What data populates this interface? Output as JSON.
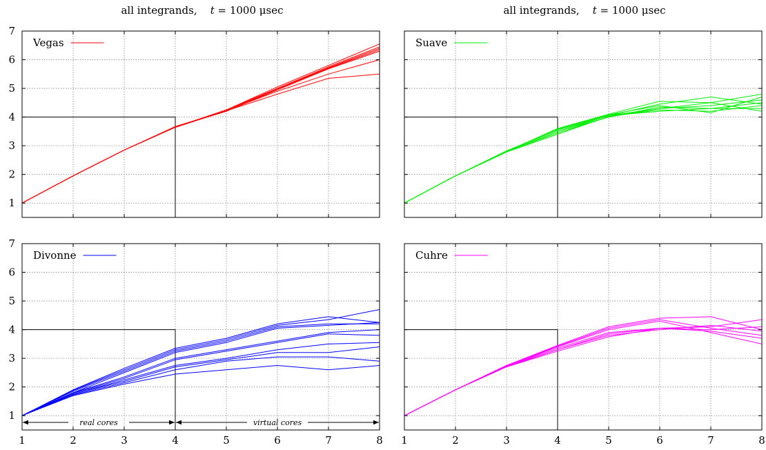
{
  "titles": [
    {
      "prefix": "all integrands,",
      "var": "t",
      "rest": " = 1000 μsec"
    },
    {
      "prefix": "all integrands,",
      "var": "t",
      "rest": " = 1000 μsec"
    }
  ],
  "annotations": {
    "real_cores": "real cores",
    "virtual_cores": "virtual cores"
  },
  "chart_data": [
    {
      "type": "line",
      "name": "Vegas",
      "color": "#ff0000",
      "x": [
        1,
        2,
        3,
        4,
        5,
        6,
        7,
        8
      ],
      "xlim": [
        1,
        8
      ],
      "ylim": [
        0.5,
        7
      ],
      "xticks": [
        1,
        2,
        3,
        4,
        5,
        6,
        7,
        8
      ],
      "yticks": [
        1,
        2,
        3,
        4,
        5,
        6,
        7
      ],
      "grid": true,
      "legend": "top-left",
      "reference_box": {
        "x": [
          1,
          4
        ],
        "y": 4
      },
      "series": [
        {
          "values": [
            1,
            1.95,
            2.85,
            3.65,
            4.25,
            5.05,
            5.8,
            6.55
          ]
        },
        {
          "values": [
            1,
            1.95,
            2.85,
            3.65,
            4.25,
            5.0,
            5.75,
            6.45
          ]
        },
        {
          "values": [
            1,
            1.95,
            2.85,
            3.67,
            4.22,
            4.98,
            5.72,
            6.4
          ]
        },
        {
          "values": [
            1,
            1.95,
            2.85,
            3.65,
            4.22,
            4.95,
            5.7,
            6.35
          ]
        },
        {
          "values": [
            1,
            1.95,
            2.85,
            3.66,
            4.2,
            4.95,
            5.68,
            6.3
          ]
        },
        {
          "values": [
            1,
            1.95,
            2.85,
            3.65,
            4.23,
            4.9,
            5.5,
            6.0
          ]
        },
        {
          "values": [
            1,
            1.95,
            2.85,
            3.64,
            4.22,
            4.8,
            5.35,
            5.5
          ]
        }
      ]
    },
    {
      "type": "line",
      "name": "Suave",
      "color": "#00ee00",
      "x": [
        1,
        2,
        3,
        4,
        5,
        6,
        7,
        8
      ],
      "xlim": [
        1,
        8
      ],
      "ylim": [
        0.5,
        7
      ],
      "xticks": [
        1,
        2,
        3,
        4,
        5,
        6,
        7,
        8
      ],
      "yticks": [
        1,
        2,
        3,
        4,
        5,
        6,
        7
      ],
      "grid": true,
      "legend": "top-left",
      "reference_box": {
        "x": [
          1,
          4
        ],
        "y": 4
      },
      "series": [
        {
          "values": [
            1,
            1.95,
            2.8,
            3.6,
            4.1,
            4.55,
            4.5,
            4.8
          ]
        },
        {
          "values": [
            1,
            1.95,
            2.82,
            3.55,
            4.05,
            4.45,
            4.7,
            4.45
          ]
        },
        {
          "values": [
            1,
            1.95,
            2.78,
            3.5,
            4.05,
            4.3,
            4.4,
            4.6
          ]
        },
        {
          "values": [
            1,
            1.95,
            2.8,
            3.45,
            4.0,
            4.35,
            4.3,
            4.5
          ]
        },
        {
          "values": [
            1,
            1.95,
            2.78,
            3.4,
            4.02,
            4.25,
            4.2,
            4.4
          ]
        },
        {
          "values": [
            1,
            1.95,
            2.8,
            3.55,
            4.05,
            4.2,
            4.3,
            4.3
          ]
        },
        {
          "values": [
            1,
            1.95,
            2.78,
            3.5,
            4.0,
            4.3,
            4.5,
            4.2
          ]
        },
        {
          "values": [
            1,
            1.95,
            2.8,
            3.58,
            4.08,
            4.4,
            4.15,
            4.7
          ]
        }
      ]
    },
    {
      "type": "line",
      "name": "Divonne",
      "color": "#0000ff",
      "x": [
        1,
        2,
        3,
        4,
        5,
        6,
        7,
        8
      ],
      "xlim": [
        1,
        8
      ],
      "ylim": [
        0.5,
        7
      ],
      "xticks": [
        1,
        2,
        3,
        4,
        5,
        6,
        7,
        8
      ],
      "yticks": [
        1,
        2,
        3,
        4,
        5,
        6,
        7
      ],
      "grid": true,
      "legend": "top-left",
      "reference_box": {
        "x": [
          1,
          4
        ],
        "y": 4
      },
      "series": [
        {
          "values": [
            1,
            1.9,
            2.65,
            3.35,
            3.7,
            4.2,
            4.45,
            4.25
          ]
        },
        {
          "values": [
            1,
            1.88,
            2.6,
            3.3,
            3.65,
            4.15,
            4.35,
            4.7
          ]
        },
        {
          "values": [
            1,
            1.85,
            2.55,
            3.25,
            3.6,
            4.1,
            4.2,
            4.2
          ]
        },
        {
          "values": [
            1,
            1.8,
            2.5,
            3.2,
            3.55,
            4.05,
            4.15,
            4.25
          ]
        },
        {
          "values": [
            1,
            1.8,
            2.35,
            3.0,
            3.3,
            3.6,
            3.9,
            4.0
          ]
        },
        {
          "values": [
            1,
            1.78,
            2.3,
            2.95,
            3.25,
            3.55,
            3.85,
            3.8
          ]
        },
        {
          "values": [
            1,
            1.75,
            2.25,
            2.75,
            3.0,
            3.3,
            3.5,
            3.55
          ]
        },
        {
          "values": [
            1,
            1.75,
            2.2,
            2.7,
            2.95,
            3.2,
            3.2,
            3.4
          ]
        },
        {
          "values": [
            1,
            1.72,
            2.15,
            2.6,
            2.9,
            3.05,
            3.05,
            2.9
          ]
        },
        {
          "values": [
            1,
            1.7,
            2.1,
            2.45,
            2.6,
            2.75,
            2.6,
            2.75
          ]
        }
      ]
    },
    {
      "type": "line",
      "name": "Cuhre",
      "color": "#ff00ff",
      "x": [
        1,
        2,
        3,
        4,
        5,
        6,
        7,
        8
      ],
      "xlim": [
        1,
        8
      ],
      "ylim": [
        0.5,
        7
      ],
      "xticks": [
        1,
        2,
        3,
        4,
        5,
        6,
        7,
        8
      ],
      "yticks": [
        1,
        2,
        3,
        4,
        5,
        6,
        7
      ],
      "grid": true,
      "legend": "top-left",
      "reference_box": {
        "x": [
          1,
          4
        ],
        "y": 4
      },
      "series": [
        {
          "values": [
            1,
            1.9,
            2.75,
            3.45,
            4.1,
            4.4,
            4.45,
            4.0
          ]
        },
        {
          "values": [
            1,
            1.9,
            2.75,
            3.42,
            4.05,
            4.35,
            4.05,
            3.8
          ]
        },
        {
          "values": [
            1,
            1.9,
            2.72,
            3.4,
            4.0,
            4.3,
            3.9,
            3.5
          ]
        },
        {
          "values": [
            1,
            1.9,
            2.73,
            3.35,
            3.9,
            4.05,
            4.1,
            4.35
          ]
        },
        {
          "values": [
            1,
            1.9,
            2.72,
            3.3,
            3.85,
            4.05,
            4.0,
            4.1
          ]
        },
        {
          "values": [
            1,
            1.9,
            2.7,
            3.3,
            3.8,
            4.0,
            4.15,
            3.95
          ]
        },
        {
          "values": [
            1,
            1.9,
            2.7,
            3.25,
            3.75,
            4.05,
            3.95,
            3.7
          ]
        }
      ]
    }
  ]
}
